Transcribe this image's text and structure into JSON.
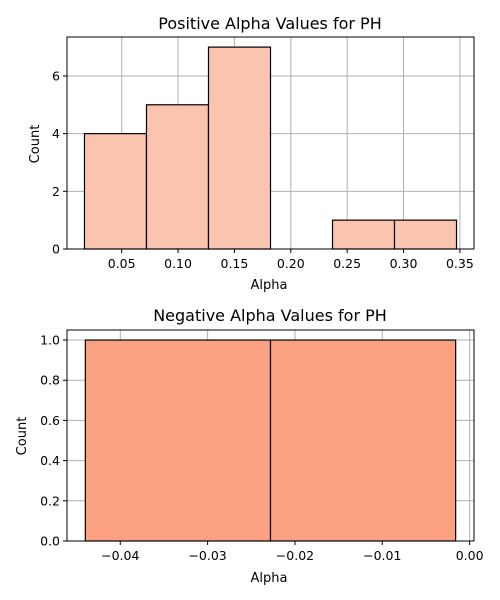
{
  "chart_data": [
    {
      "type": "bar",
      "title": "Positive Alpha Values for PH",
      "xlabel": "Alpha",
      "ylabel": "Count",
      "bar_color": "#fbc4ae",
      "bins": [
        {
          "start": 0.017,
          "end": 0.072,
          "count": 4
        },
        {
          "start": 0.072,
          "end": 0.127,
          "count": 5
        },
        {
          "start": 0.127,
          "end": 0.182,
          "count": 7
        },
        {
          "start": 0.182,
          "end": 0.237,
          "count": 0
        },
        {
          "start": 0.237,
          "end": 0.292,
          "count": 1
        },
        {
          "start": 0.292,
          "end": 0.347,
          "count": 1
        }
      ],
      "xlim": [
        0.0015,
        0.3625
      ],
      "ylim": [
        0,
        7.35
      ],
      "xticks": [
        {
          "value": 0.05,
          "label": "0.05"
        },
        {
          "value": 0.1,
          "label": "0.10"
        },
        {
          "value": 0.15,
          "label": "0.15"
        },
        {
          "value": 0.2,
          "label": "0.20"
        },
        {
          "value": 0.25,
          "label": "0.25"
        },
        {
          "value": 0.3,
          "label": "0.30"
        },
        {
          "value": 0.35,
          "label": "0.35"
        }
      ],
      "yticks": [
        {
          "value": 0,
          "label": "0"
        },
        {
          "value": 2,
          "label": "2"
        },
        {
          "value": 4,
          "label": "4"
        },
        {
          "value": 6,
          "label": "6"
        }
      ],
      "grid": true
    },
    {
      "type": "bar",
      "title": "Negative Alpha Values for PH",
      "xlabel": "Alpha",
      "ylabel": "Count",
      "bar_color": "#fca283",
      "bins": [
        {
          "start": -0.044,
          "end": -0.0228,
          "count": 1
        },
        {
          "start": -0.0228,
          "end": -0.0016,
          "count": 1
        }
      ],
      "xlim": [
        -0.0461,
        0.0005
      ],
      "ylim": [
        0,
        1.05
      ],
      "xticks": [
        {
          "value": -0.04,
          "label": "−0.04"
        },
        {
          "value": -0.03,
          "label": "−0.03"
        },
        {
          "value": -0.02,
          "label": "−0.02"
        },
        {
          "value": -0.01,
          "label": "−0.01"
        },
        {
          "value": 0.0,
          "label": "0.00"
        }
      ],
      "yticks": [
        {
          "value": 0.0,
          "label": "0.0"
        },
        {
          "value": 0.2,
          "label": "0.2"
        },
        {
          "value": 0.4,
          "label": "0.4"
        },
        {
          "value": 0.6,
          "label": "0.6"
        },
        {
          "value": 0.8,
          "label": "0.8"
        },
        {
          "value": 1.0,
          "label": "1.0"
        }
      ],
      "grid": true
    }
  ]
}
